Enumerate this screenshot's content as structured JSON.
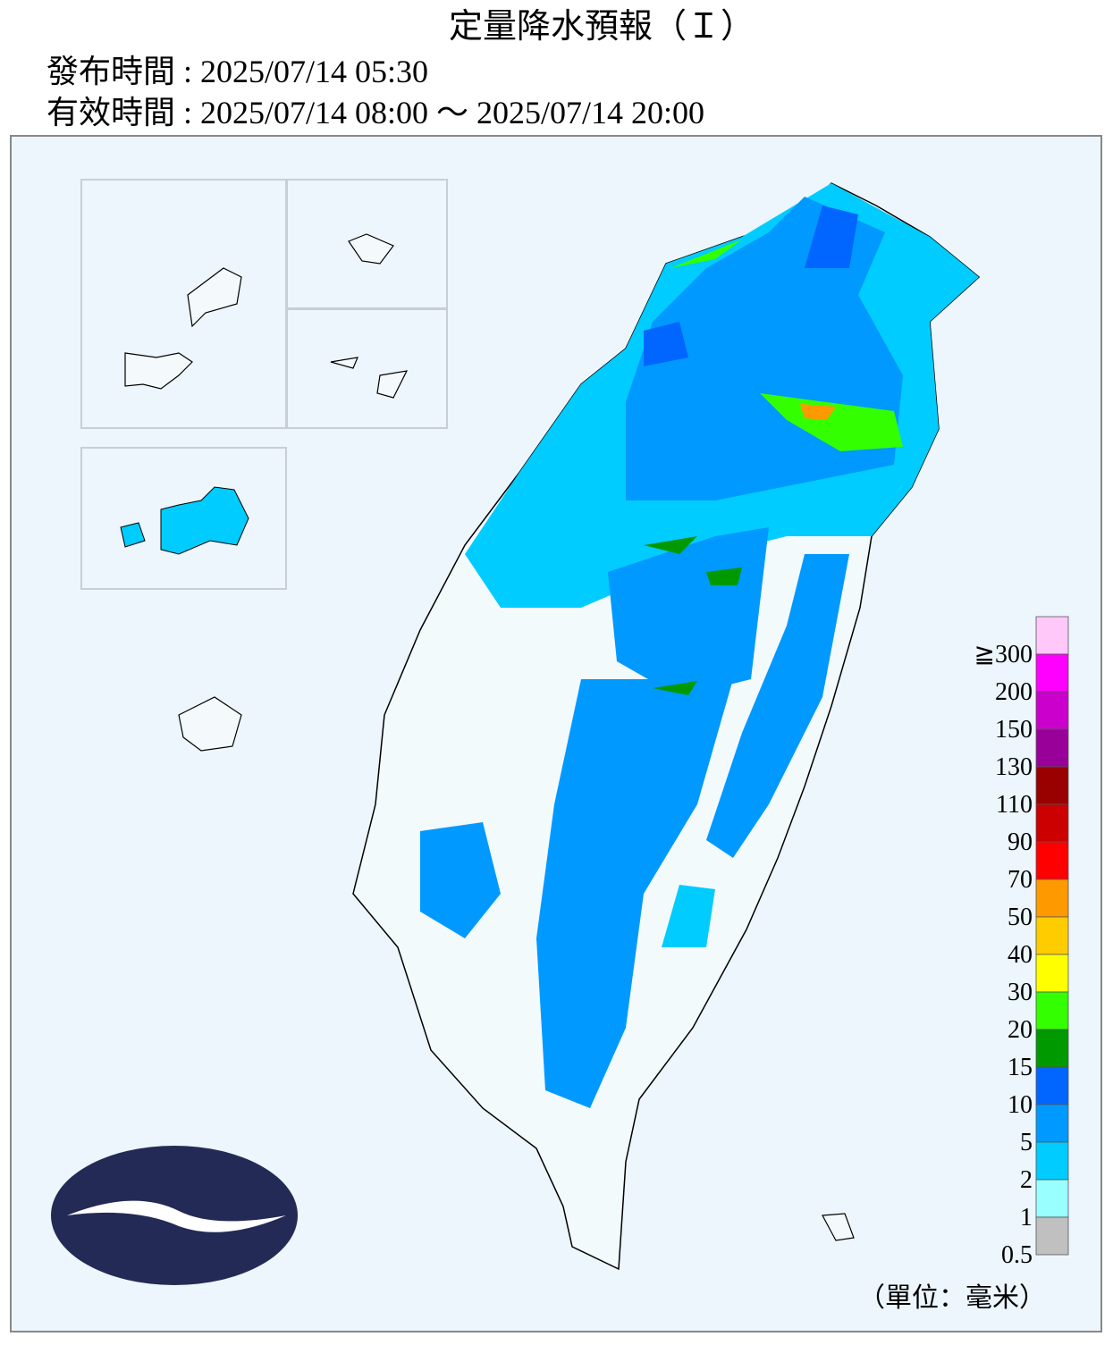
{
  "header": {
    "title": "定量降水預報（Ｉ）",
    "issued": "發布時間 : 2025/07/14 05:30",
    "valid": "有效時間 : 2025/07/14 08:00 ～ 2025/07/14 20:00"
  },
  "legend": {
    "unit": "（單位：毫米）",
    "items": [
      {
        "label": "≧300",
        "color": "#ffc8f8"
      },
      {
        "label": "200",
        "color": "#ff00ff"
      },
      {
        "label": "150",
        "color": "#cc00cc"
      },
      {
        "label": "130",
        "color": "#990099"
      },
      {
        "label": "110",
        "color": "#990000"
      },
      {
        "label": "90",
        "color": "#cc0000"
      },
      {
        "label": "70",
        "color": "#ff0000"
      },
      {
        "label": "50",
        "color": "#ff9900"
      },
      {
        "label": "40",
        "color": "#ffcc00"
      },
      {
        "label": "30",
        "color": "#ffff00"
      },
      {
        "label": "20",
        "color": "#33ff00"
      },
      {
        "label": "15",
        "color": "#009900"
      },
      {
        "label": "10",
        "color": "#0066ff"
      },
      {
        "label": "5",
        "color": "#0099ff"
      },
      {
        "label": "2",
        "color": "#00ccff"
      },
      {
        "label": "1",
        "color": "#99ffff"
      },
      {
        "label": "0.5",
        "color": "#c0c0c0"
      }
    ]
  }
}
